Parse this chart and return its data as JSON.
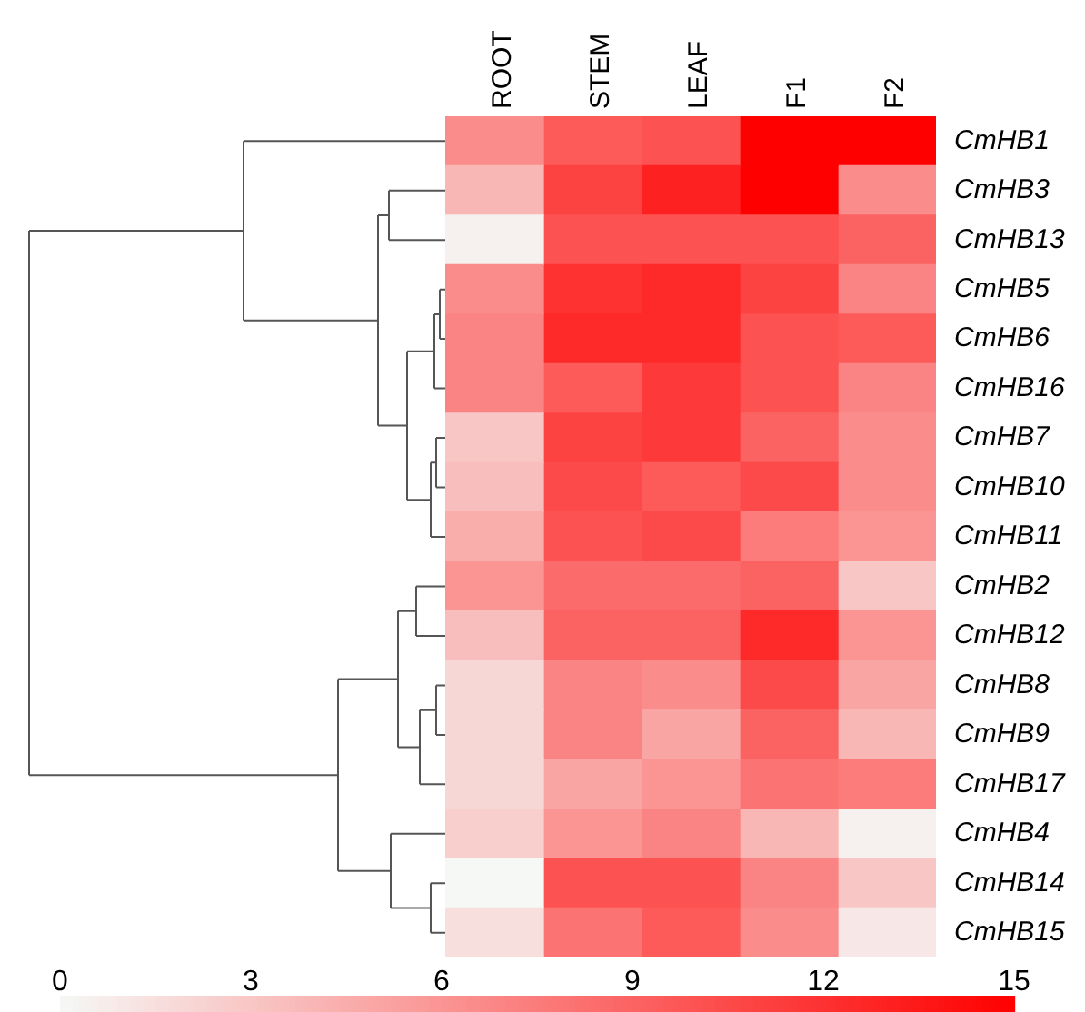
{
  "chart_data": {
    "type": "heatmap",
    "categories": [
      "ROOT",
      "STEM",
      "LEAF",
      "F1",
      "F2"
    ],
    "y_categories": [
      "CmHB1",
      "CmHB3",
      "CmHB13",
      "CmHB5",
      "CmHB6",
      "CmHB16",
      "CmHB7",
      "CmHB10",
      "CmHB11",
      "CmHB2",
      "CmHB12",
      "CmHB8",
      "CmHB9",
      "CmHB17",
      "CmHB4",
      "CmHB14",
      "CmHB15"
    ],
    "cells": [
      [
        6.5,
        9.5,
        10,
        15,
        15
      ],
      [
        4,
        11,
        13,
        15,
        6.5
      ],
      [
        0.5,
        10,
        10,
        10,
        9
      ],
      [
        6.5,
        12,
        12.5,
        11,
        7
      ],
      [
        7,
        12.5,
        12.5,
        10,
        9.5
      ],
      [
        7,
        9.5,
        11.5,
        10,
        7
      ],
      [
        3,
        11,
        11.5,
        9,
        6.5
      ],
      [
        3.5,
        10.5,
        9.5,
        10.5,
        6.5
      ],
      [
        4.5,
        10,
        10.5,
        7.5,
        6
      ],
      [
        6,
        8.5,
        8.5,
        9,
        3
      ],
      [
        3.5,
        9,
        9,
        12.5,
        6
      ],
      [
        2,
        7,
        6.5,
        10.5,
        5
      ],
      [
        2,
        7,
        5,
        9,
        4
      ],
      [
        2,
        5,
        6,
        8,
        7.5
      ],
      [
        2.5,
        6,
        7,
        4,
        0.5
      ],
      [
        0,
        10,
        10,
        7,
        3
      ],
      [
        1.5,
        8,
        9.5,
        6.5,
        1
      ]
    ],
    "clim": [
      0,
      15
    ],
    "cticks": [
      0,
      3,
      6,
      9,
      12,
      15
    ]
  }
}
